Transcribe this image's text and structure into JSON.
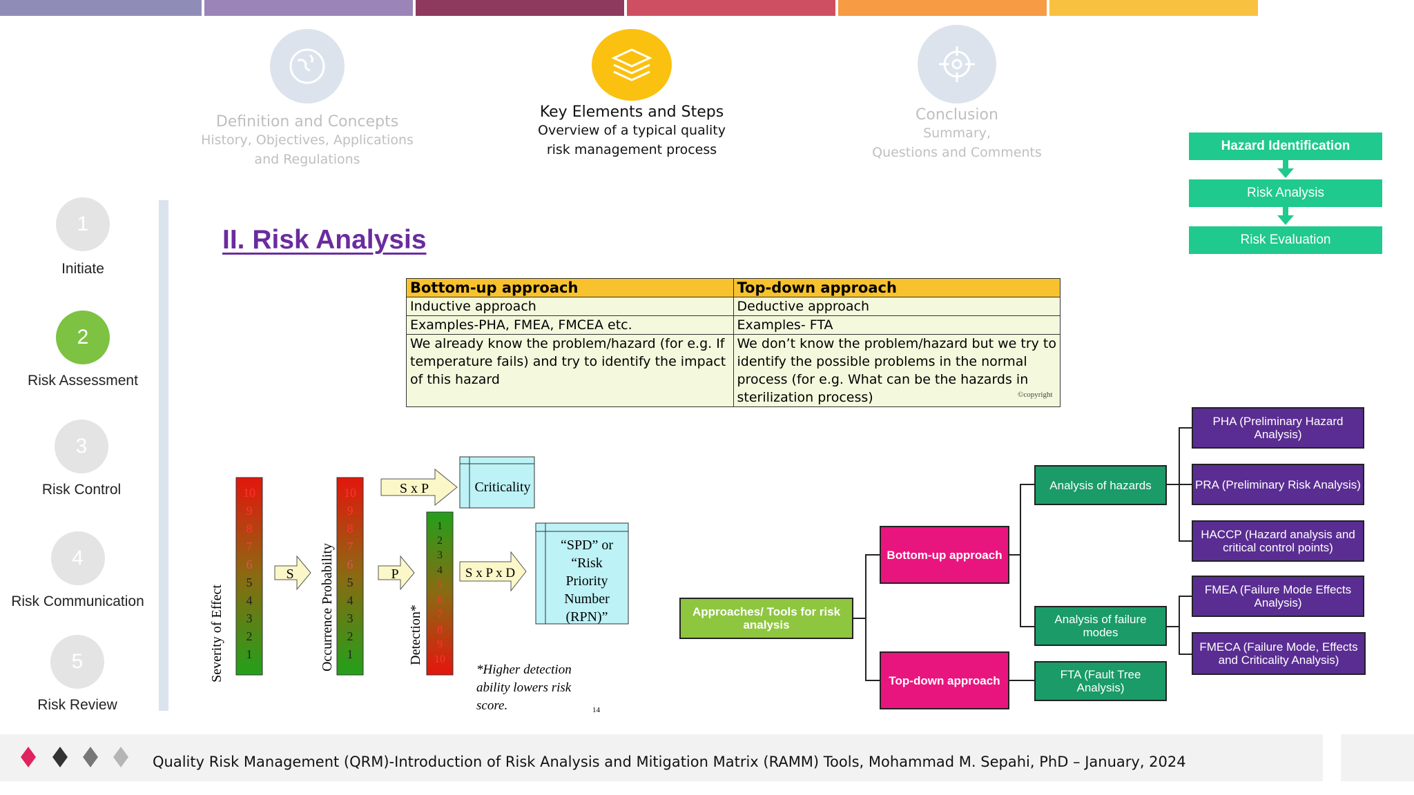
{
  "top_bar_colors": [
    "#8f8db8",
    "#9b84b7",
    "#8e3a5e",
    "#cf4f62",
    "#f79b45",
    "#f9c140"
  ],
  "stages": [
    {
      "title": "Definition and Concepts",
      "sub1": "History, Objectives, Applications",
      "sub2": "and Regulations",
      "icon": "globe-icon"
    },
    {
      "title": "Key Elements and Steps",
      "sub1": "Overview of a typical quality",
      "sub2": "risk management process",
      "icon": "layers-icon"
    },
    {
      "title": "Conclusion",
      "sub1": "Summary,",
      "sub2": "Questions and Comments",
      "icon": "target-icon"
    }
  ],
  "nav": [
    {
      "num": "1",
      "label": "Initiate"
    },
    {
      "num": "2",
      "label": "Risk Assessment"
    },
    {
      "num": "3",
      "label": "Risk Control"
    },
    {
      "num": "4",
      "label": "Risk Communication"
    },
    {
      "num": "5",
      "label": "Risk Review"
    }
  ],
  "main_title": "II. Risk Analysis",
  "table": {
    "headers": [
      "Bottom-up approach",
      "Top-down approach"
    ],
    "rows": [
      [
        "Inductive approach",
        "Deductive approach"
      ],
      [
        "Examples-PHA, FMEA, FMCEA etc.",
        "Examples- FTA"
      ],
      [
        "We already know the problem/hazard (for e.g. If temperature fails) and try to identify the impact of this hazard",
        "We don’t know the problem/hazard but we try to identify the possible problems in the normal process (for e.g. What can be the hazards in sterilization process)"
      ]
    ],
    "copyright": "©copyright"
  },
  "flow": [
    "Hazard Identification",
    "Risk Analysis",
    "Risk Evaluation"
  ],
  "rpn": {
    "severity_label": "Severity of Effect",
    "occurrence_label": "Occurrence Probability",
    "detection_label": "Detection*",
    "descending_scale": [
      "10",
      "9",
      "8",
      "7",
      "6",
      "5",
      "4",
      "3",
      "2",
      "1"
    ],
    "ascending_scale": [
      "1",
      "2",
      "3",
      "4",
      "5",
      "6",
      "7",
      "8",
      "9",
      "10"
    ],
    "arrow_s": "S",
    "arrow_p": "P",
    "arrow_sxp": "S x P",
    "arrow_sxpxd": "S x P x D",
    "criticality": "Criticality",
    "rpn_lines": [
      "“SPD” or",
      "“Risk",
      "Priority",
      "Number",
      "(RPN)”"
    ],
    "note_lines": [
      "*Higher detection",
      "ability lowers risk",
      "score."
    ],
    "page_number": "14"
  },
  "tree": {
    "root": "Approaches/ Tools for risk analysis",
    "bottom_up": "Bottom-up approach",
    "top_down": "Top-down approach",
    "analysis_hazards": "Analysis of hazards",
    "analysis_failure": "Analysis of failure modes",
    "fta": "FTA (Fault Tree Analysis)",
    "pha": "PHA (Preliminary Hazard Analysis)",
    "pra": "PRA (Preliminary Risk Analysis)",
    "haccp": "HACCP (Hazard analysis and critical control points)",
    "fmea": "FMEA (Failure Mode Effects Analysis)",
    "fmeca": "FMECA (Failure Mode, Effects and Criticality Analysis)"
  },
  "footer": {
    "text": "Quality Risk Management (QRM)-Introduction of Risk Analysis and Mitigation Matrix (RAMM) Tools, Mohammad M. Sepahi, PhD – January, 2024",
    "diamond_colors": [
      "#e0245e",
      "#333333",
      "#777777",
      "#b5b5b5"
    ]
  }
}
